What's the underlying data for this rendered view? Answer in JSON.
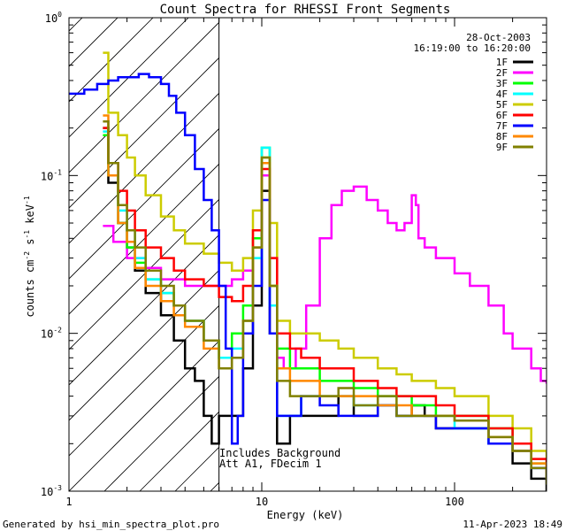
{
  "chart_data": {
    "type": "line",
    "title": "Count Spectra for RHESSI Front Segments",
    "xlabel": "Energy (keV)",
    "ylabel": "counts cm-2 s-1 keV-1",
    "xscale": "log",
    "yscale": "log",
    "xlim": [
      1,
      300
    ],
    "ylim": [
      0.001,
      1
    ],
    "x_ticks": [
      {
        "value": 1,
        "label": "1"
      },
      {
        "value": 10,
        "label": "10"
      },
      {
        "value": 100,
        "label": "100"
      }
    ],
    "y_ticks": [
      {
        "value": 0.001,
        "base": "10",
        "exp": "-3"
      },
      {
        "value": 0.01,
        "base": "10",
        "exp": "-2"
      },
      {
        "value": 0.1,
        "base": "10",
        "exp": "-1"
      },
      {
        "value": 1,
        "base": "10",
        "exp": "0"
      }
    ],
    "date": "28-Oct-2003",
    "time_range": "16:19:00 to 16:20:00",
    "annotation_lines": [
      "Includes Background",
      "Att A1, FDecim 1"
    ],
    "hatched_below_keV": 6,
    "footer_left": "Generated by hsi_min_spectra_plot.pro",
    "footer_right": "11-Apr-2023 18:49",
    "series": [
      {
        "name": "1F",
        "color": "#000000",
        "points": [
          [
            1.5,
            0.2
          ],
          [
            1.6,
            0.09
          ],
          [
            1.8,
            0.05
          ],
          [
            2.0,
            0.035
          ],
          [
            2.2,
            0.025
          ],
          [
            2.5,
            0.018
          ],
          [
            3.0,
            0.013
          ],
          [
            3.5,
            0.009
          ],
          [
            4.0,
            0.006
          ],
          [
            4.5,
            0.005
          ],
          [
            5,
            0.003
          ],
          [
            5.5,
            0.002
          ],
          [
            6,
            0.003
          ],
          [
            7,
            0.003
          ],
          [
            8,
            0.006
          ],
          [
            9,
            0.015
          ],
          [
            10,
            0.08
          ],
          [
            11,
            0.01
          ],
          [
            12,
            0.002
          ],
          [
            14,
            0.003
          ],
          [
            16,
            0.003
          ],
          [
            20,
            0.003
          ],
          [
            25,
            0.004
          ],
          [
            30,
            0.003
          ],
          [
            40,
            0.0035
          ],
          [
            50,
            0.003
          ],
          [
            60,
            0.0035
          ],
          [
            70,
            0.003
          ],
          [
            80,
            0.0025
          ],
          [
            100,
            0.0025
          ],
          [
            120,
            0.0025
          ],
          [
            150,
            0.002
          ],
          [
            200,
            0.0015
          ],
          [
            250,
            0.0012
          ],
          [
            300,
            0.001
          ]
        ]
      },
      {
        "name": "2F",
        "color": "#ff00ff",
        "points": [
          [
            1.5,
            0.048
          ],
          [
            1.7,
            0.038
          ],
          [
            2.0,
            0.03
          ],
          [
            2.5,
            0.026
          ],
          [
            3.0,
            0.022
          ],
          [
            4.0,
            0.02
          ],
          [
            5.0,
            0.02
          ],
          [
            6,
            0.02
          ],
          [
            7,
            0.022
          ],
          [
            8,
            0.025
          ],
          [
            9,
            0.04
          ],
          [
            10,
            0.1
          ],
          [
            11,
            0.03
          ],
          [
            12,
            0.007
          ],
          [
            13,
            0.006
          ],
          [
            15,
            0.008
          ],
          [
            17,
            0.015
          ],
          [
            20,
            0.04
          ],
          [
            23,
            0.065
          ],
          [
            26,
            0.08
          ],
          [
            30,
            0.085
          ],
          [
            35,
            0.07
          ],
          [
            40,
            0.06
          ],
          [
            45,
            0.05
          ],
          [
            50,
            0.045
          ],
          [
            55,
            0.05
          ],
          [
            60,
            0.075
          ],
          [
            63,
            0.065
          ],
          [
            65,
            0.04
          ],
          [
            70,
            0.035
          ],
          [
            80,
            0.03
          ],
          [
            100,
            0.024
          ],
          [
            120,
            0.02
          ],
          [
            150,
            0.015
          ],
          [
            180,
            0.01
          ],
          [
            200,
            0.008
          ],
          [
            250,
            0.006
          ],
          [
            280,
            0.005
          ],
          [
            300,
            0.0048
          ]
        ]
      },
      {
        "name": "3F",
        "color": "#00ff00",
        "points": [
          [
            1.5,
            0.18
          ],
          [
            1.6,
            0.1
          ],
          [
            1.8,
            0.05
          ],
          [
            2.0,
            0.035
          ],
          [
            2.2,
            0.028
          ],
          [
            2.5,
            0.022
          ],
          [
            3.0,
            0.018
          ],
          [
            3.5,
            0.015
          ],
          [
            4.0,
            0.012
          ],
          [
            5,
            0.009
          ],
          [
            6,
            0.007
          ],
          [
            7,
            0.01
          ],
          [
            8,
            0.015
          ],
          [
            9,
            0.04
          ],
          [
            10,
            0.15
          ],
          [
            11,
            0.02
          ],
          [
            12,
            0.008
          ],
          [
            14,
            0.006
          ],
          [
            16,
            0.006
          ],
          [
            20,
            0.005
          ],
          [
            25,
            0.005
          ],
          [
            30,
            0.0045
          ],
          [
            40,
            0.004
          ],
          [
            50,
            0.004
          ],
          [
            60,
            0.0035
          ],
          [
            80,
            0.003
          ],
          [
            100,
            0.003
          ],
          [
            150,
            0.0025
          ],
          [
            200,
            0.002
          ],
          [
            250,
            0.0015
          ],
          [
            300,
            0.0012
          ]
        ]
      },
      {
        "name": "4F",
        "color": "#00ffff",
        "points": [
          [
            1.5,
            0.19
          ],
          [
            1.6,
            0.1
          ],
          [
            1.8,
            0.06
          ],
          [
            2.0,
            0.045
          ],
          [
            2.2,
            0.03
          ],
          [
            2.5,
            0.022
          ],
          [
            3.0,
            0.018
          ],
          [
            3.5,
            0.015
          ],
          [
            4.0,
            0.012
          ],
          [
            5,
            0.009
          ],
          [
            6,
            0.007
          ],
          [
            7,
            0.008
          ],
          [
            8,
            0.012
          ],
          [
            9,
            0.03
          ],
          [
            10,
            0.15
          ],
          [
            11,
            0.015
          ],
          [
            12,
            0.003
          ],
          [
            14,
            0.003
          ],
          [
            16,
            0.004
          ],
          [
            20,
            0.004
          ],
          [
            25,
            0.004
          ],
          [
            30,
            0.0035
          ],
          [
            40,
            0.0035
          ],
          [
            50,
            0.003
          ],
          [
            60,
            0.003
          ],
          [
            80,
            0.003
          ],
          [
            100,
            0.0025
          ],
          [
            150,
            0.002
          ],
          [
            200,
            0.0018
          ],
          [
            250,
            0.0014
          ],
          [
            300,
            0.0012
          ]
        ]
      },
      {
        "name": "5F",
        "color": "#cccc00",
        "points": [
          [
            1.5,
            0.6
          ],
          [
            1.6,
            0.25
          ],
          [
            1.8,
            0.18
          ],
          [
            2.0,
            0.13
          ],
          [
            2.2,
            0.1
          ],
          [
            2.5,
            0.075
          ],
          [
            3.0,
            0.055
          ],
          [
            3.5,
            0.045
          ],
          [
            4.0,
            0.037
          ],
          [
            5,
            0.032
          ],
          [
            6,
            0.028
          ],
          [
            7,
            0.025
          ],
          [
            8,
            0.03
          ],
          [
            9,
            0.06
          ],
          [
            10,
            0.13
          ],
          [
            11,
            0.05
          ],
          [
            12,
            0.012
          ],
          [
            14,
            0.01
          ],
          [
            16,
            0.01
          ],
          [
            20,
            0.009
          ],
          [
            25,
            0.008
          ],
          [
            30,
            0.007
          ],
          [
            40,
            0.006
          ],
          [
            50,
            0.0055
          ],
          [
            60,
            0.005
          ],
          [
            80,
            0.0045
          ],
          [
            100,
            0.004
          ],
          [
            150,
            0.003
          ],
          [
            200,
            0.0025
          ],
          [
            250,
            0.0018
          ],
          [
            300,
            0.0014
          ]
        ]
      },
      {
        "name": "6F",
        "color": "#ff0000",
        "points": [
          [
            1.5,
            0.2
          ],
          [
            1.6,
            0.12
          ],
          [
            1.8,
            0.08
          ],
          [
            2.0,
            0.06
          ],
          [
            2.2,
            0.045
          ],
          [
            2.5,
            0.035
          ],
          [
            3.0,
            0.03
          ],
          [
            3.5,
            0.025
          ],
          [
            4.0,
            0.022
          ],
          [
            5,
            0.02
          ],
          [
            6,
            0.017
          ],
          [
            7,
            0.016
          ],
          [
            8,
            0.02
          ],
          [
            9,
            0.045
          ],
          [
            10,
            0.11
          ],
          [
            11,
            0.03
          ],
          [
            12,
            0.01
          ],
          [
            14,
            0.008
          ],
          [
            16,
            0.007
          ],
          [
            20,
            0.006
          ],
          [
            25,
            0.006
          ],
          [
            30,
            0.005
          ],
          [
            40,
            0.0045
          ],
          [
            50,
            0.004
          ],
          [
            60,
            0.004
          ],
          [
            80,
            0.0035
          ],
          [
            100,
            0.003
          ],
          [
            150,
            0.0025
          ],
          [
            200,
            0.002
          ],
          [
            250,
            0.0016
          ],
          [
            300,
            0.0013
          ]
        ]
      },
      {
        "name": "7F",
        "color": "#0000ff",
        "points": [
          [
            1.0,
            0.33
          ],
          [
            1.2,
            0.35
          ],
          [
            1.4,
            0.38
          ],
          [
            1.6,
            0.4
          ],
          [
            1.8,
            0.42
          ],
          [
            2.0,
            0.42
          ],
          [
            2.3,
            0.44
          ],
          [
            2.6,
            0.42
          ],
          [
            3.0,
            0.38
          ],
          [
            3.3,
            0.32
          ],
          [
            3.6,
            0.25
          ],
          [
            4.0,
            0.18
          ],
          [
            4.5,
            0.11
          ],
          [
            5.0,
            0.07
          ],
          [
            5.5,
            0.045
          ],
          [
            6,
            0.02
          ],
          [
            6.5,
            0.008
          ],
          [
            7,
            0.002
          ],
          [
            7.5,
            0.003
          ],
          [
            8,
            0.01
          ],
          [
            9,
            0.02
          ],
          [
            10,
            0.07
          ],
          [
            11,
            0.01
          ],
          [
            12,
            0.003
          ],
          [
            14,
            0.003
          ],
          [
            16,
            0.004
          ],
          [
            20,
            0.0035
          ],
          [
            25,
            0.003
          ],
          [
            30,
            0.003
          ],
          [
            40,
            0.0035
          ],
          [
            50,
            0.003
          ],
          [
            60,
            0.003
          ],
          [
            80,
            0.0025
          ],
          [
            100,
            0.0025
          ],
          [
            150,
            0.002
          ],
          [
            200,
            0.0018
          ],
          [
            250,
            0.0014
          ],
          [
            300,
            0.0011
          ]
        ]
      },
      {
        "name": "8F",
        "color": "#ff8800",
        "points": [
          [
            1.5,
            0.24
          ],
          [
            1.6,
            0.1
          ],
          [
            1.8,
            0.05
          ],
          [
            2.0,
            0.038
          ],
          [
            2.2,
            0.026
          ],
          [
            2.5,
            0.02
          ],
          [
            3.0,
            0.016
          ],
          [
            3.5,
            0.013
          ],
          [
            4.0,
            0.011
          ],
          [
            5,
            0.008
          ],
          [
            6,
            0.006
          ],
          [
            7,
            0.007
          ],
          [
            8,
            0.012
          ],
          [
            9,
            0.035
          ],
          [
            10,
            0.12
          ],
          [
            11,
            0.02
          ],
          [
            12,
            0.006
          ],
          [
            14,
            0.005
          ],
          [
            16,
            0.005
          ],
          [
            20,
            0.004
          ],
          [
            25,
            0.004
          ],
          [
            30,
            0.004
          ],
          [
            40,
            0.0035
          ],
          [
            50,
            0.0035
          ],
          [
            60,
            0.003
          ],
          [
            80,
            0.003
          ],
          [
            100,
            0.0028
          ],
          [
            150,
            0.0022
          ],
          [
            200,
            0.0018
          ],
          [
            250,
            0.0015
          ],
          [
            300,
            0.0012
          ]
        ]
      },
      {
        "name": "9F",
        "color": "#808000",
        "points": [
          [
            1.5,
            0.22
          ],
          [
            1.6,
            0.12
          ],
          [
            1.8,
            0.065
          ],
          [
            2.0,
            0.045
          ],
          [
            2.2,
            0.035
          ],
          [
            2.5,
            0.025
          ],
          [
            3.0,
            0.02
          ],
          [
            3.5,
            0.015
          ],
          [
            4.0,
            0.012
          ],
          [
            5,
            0.009
          ],
          [
            6,
            0.006
          ],
          [
            7,
            0.007
          ],
          [
            8,
            0.012
          ],
          [
            9,
            0.035
          ],
          [
            10,
            0.13
          ],
          [
            11,
            0.02
          ],
          [
            12,
            0.005
          ],
          [
            14,
            0.004
          ],
          [
            16,
            0.004
          ],
          [
            20,
            0.004
          ],
          [
            25,
            0.0045
          ],
          [
            30,
            0.0035
          ],
          [
            40,
            0.004
          ],
          [
            50,
            0.003
          ],
          [
            60,
            0.003
          ],
          [
            80,
            0.003
          ],
          [
            100,
            0.0028
          ],
          [
            150,
            0.0022
          ],
          [
            200,
            0.0018
          ],
          [
            250,
            0.0014
          ],
          [
            300,
            0.0011
          ]
        ]
      }
    ]
  }
}
